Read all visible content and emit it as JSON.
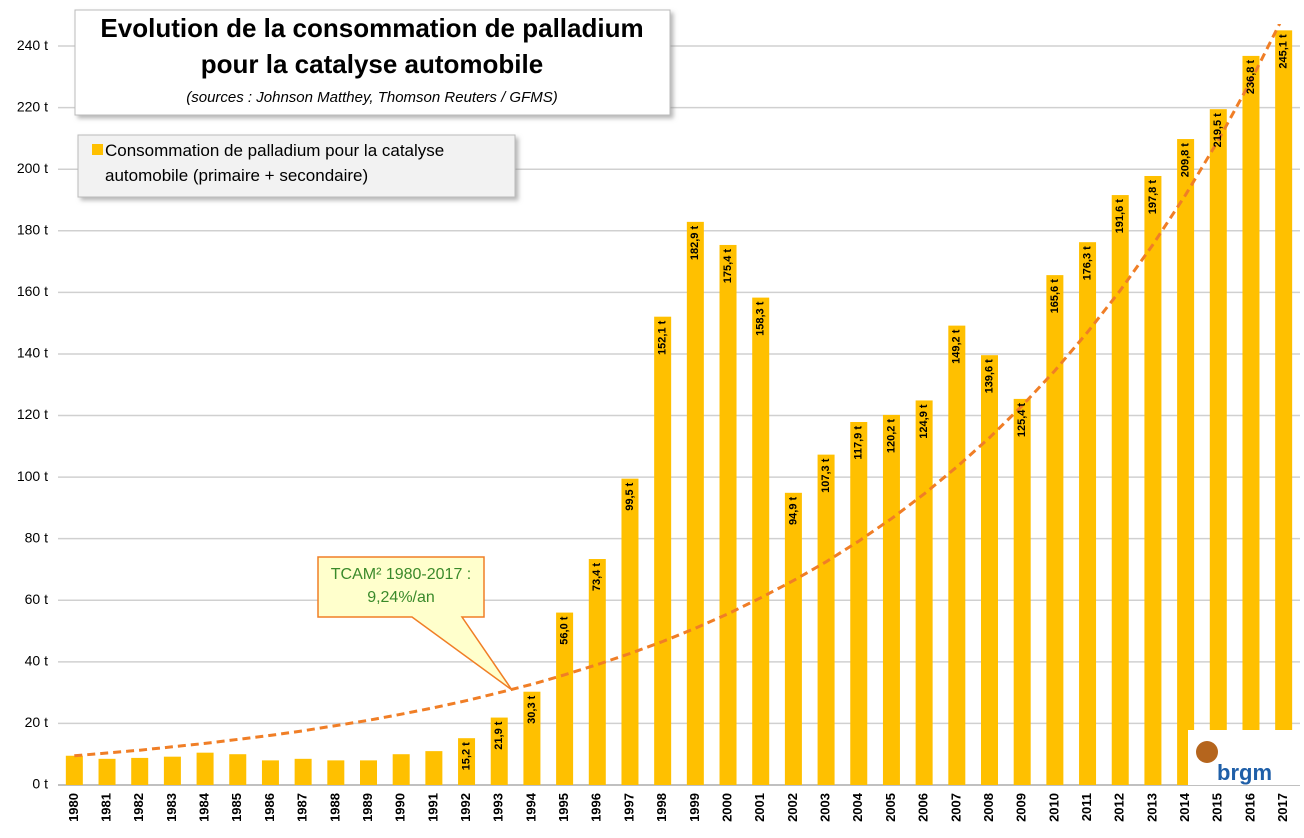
{
  "chart_data": {
    "type": "bar",
    "title_lines": [
      "Evolution de la consommation de palladium",
      "pour la catalyse automobile"
    ],
    "subtitle": "(sources : Johnson Matthey, Thomson Reuters / GFMS)",
    "categories": [
      "1980",
      "1981",
      "1982",
      "1983",
      "1984",
      "1985",
      "1986",
      "1987",
      "1988",
      "1989",
      "1990",
      "1991",
      "1992",
      "1993",
      "1994",
      "1995",
      "1996",
      "1997",
      "1998",
      "1999",
      "2000",
      "2001",
      "2002",
      "2003",
      "2004",
      "2005",
      "2006",
      "2007",
      "2008",
      "2009",
      "2010",
      "2011",
      "2012",
      "2013",
      "2014",
      "2015",
      "2016",
      "2017"
    ],
    "series": [
      {
        "name": "Consommation de palladium pour la catalyse automobile (primaire + secondaire)",
        "color": "#FFC000",
        "values": [
          9.5,
          8.5,
          8.8,
          9.2,
          10.5,
          10,
          8,
          8.5,
          8,
          8,
          10,
          11,
          15.2,
          21.9,
          30.3,
          56.0,
          73.4,
          99.5,
          152.1,
          182.9,
          175.4,
          158.3,
          94.9,
          107.3,
          117.9,
          120.2,
          124.9,
          149.2,
          139.6,
          125.4,
          165.6,
          176.3,
          191.6,
          197.8,
          209.8,
          219.5,
          236.8,
          245.1
        ],
        "value_labels": [
          null,
          null,
          null,
          null,
          null,
          null,
          null,
          null,
          null,
          null,
          null,
          null,
          "15,2 t",
          "21,9 t",
          "30,3 t",
          "56,0 t",
          "73,4 t",
          "99,5 t",
          "152,1 t",
          "182,9 t",
          "175,4 t",
          "158,3 t",
          "94,9 t",
          "107,3 t",
          "117,9 t",
          "120,2 t",
          "124,9 t",
          "149,2 t",
          "139,6 t",
          "125,4 t",
          "165,6 t",
          "176,3 t",
          "191,6 t",
          "197,8 t",
          "209,8 t",
          "219,5 t",
          "236,8 t",
          "245,1 t"
        ]
      }
    ],
    "trend": {
      "color": "#F07E26",
      "values": [
        9.5,
        10.4,
        11.3,
        12.4,
        13.5,
        14.8,
        16.1,
        17.6,
        19.3,
        21.0,
        23.0,
        25.1,
        27.4,
        30.0,
        32.7,
        35.8,
        39.1,
        42.7,
        46.6,
        50.9,
        55.6,
        60.8,
        66.4,
        72.5,
        79.2,
        86.5,
        94.5,
        103.3,
        112.8,
        123.2,
        134.6,
        147.1,
        160.6,
        175.5,
        191.7,
        209.4,
        228.8,
        249.9
      ]
    },
    "annotation": {
      "lines": [
        "TCAM² 1980-2017 :",
        "9,24%/an"
      ],
      "x": "1993",
      "y": 30.0
    },
    "ylim": [
      0,
      247
    ],
    "yticks": [
      {
        "value": 0,
        "label": "0 t"
      },
      {
        "value": 20,
        "label": "20 t"
      },
      {
        "value": 40,
        "label": "40 t"
      },
      {
        "value": 60,
        "label": "60 t"
      },
      {
        "value": 80,
        "label": "80 t"
      },
      {
        "value": 100,
        "label": "100 t"
      },
      {
        "value": 120,
        "label": "120 t"
      },
      {
        "value": 140,
        "label": "140 t"
      },
      {
        "value": 160,
        "label": "160 t"
      },
      {
        "value": 180,
        "label": "180 t"
      },
      {
        "value": 200,
        "label": "200 t"
      },
      {
        "value": 220,
        "label": "220 t"
      },
      {
        "value": 240,
        "label": "240 t"
      }
    ],
    "grid": true,
    "logo": "brgm"
  }
}
